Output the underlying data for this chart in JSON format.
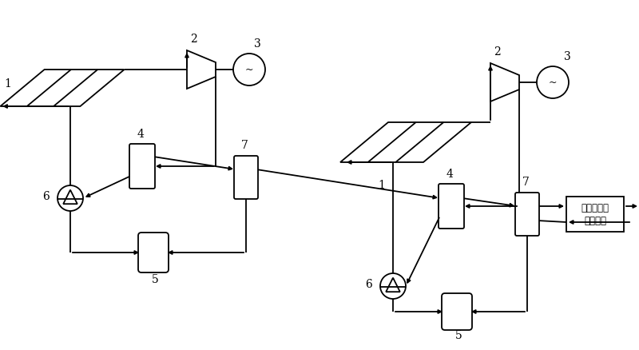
{
  "bg_color": "#ffffff",
  "lc": "#000000",
  "lw": 1.3,
  "label_fs": 10,
  "ann_fs": 8.5,
  "ann_line1": "冷凝水或下",
  "ann_line2": "一级系统"
}
